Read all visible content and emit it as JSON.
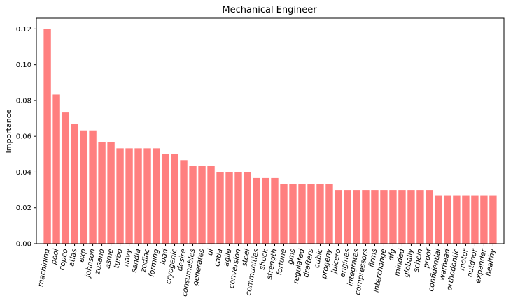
{
  "chart_data": {
    "type": "bar",
    "title": "Mechanical Engineer",
    "xlabel": "",
    "ylabel": "Importance",
    "ylim": [
      0,
      0.126
    ],
    "yticks": [
      0.0,
      0.02,
      0.04,
      0.06,
      0.08,
      0.1,
      0.12
    ],
    "bar_color": "#ff7f7f",
    "grid": false,
    "categories": [
      "machining",
      "pool",
      "copco",
      "atlas",
      "exp",
      "johnson",
      "zosano",
      "asme",
      "turbo",
      "navy",
      "sandia",
      "zodiac",
      "forming",
      "load",
      "cryogenic",
      "desire",
      "consumables",
      "generates",
      "ul",
      "catia",
      "agile",
      "conversion",
      "steel",
      "communities",
      "shock",
      "strength",
      "fortune",
      "gms",
      "regulated",
      "drafters",
      "cubic",
      "progeny",
      "juicero",
      "engines",
      "integrates",
      "compressors",
      "firms",
      "interchange",
      "dfg",
      "minded",
      "globally",
      "schein",
      "proof",
      "confidential",
      "warhead",
      "orthodontic",
      "motor",
      "outdoor",
      "expander",
      "healthy"
    ],
    "values": [
      0.12,
      0.0833,
      0.0733,
      0.0667,
      0.0633,
      0.0633,
      0.0567,
      0.0567,
      0.0533,
      0.0533,
      0.0533,
      0.0533,
      0.0533,
      0.05,
      0.05,
      0.0467,
      0.0433,
      0.0433,
      0.0433,
      0.04,
      0.04,
      0.04,
      0.04,
      0.0367,
      0.0367,
      0.0367,
      0.0333,
      0.0333,
      0.0333,
      0.0333,
      0.0333,
      0.0333,
      0.03,
      0.03,
      0.03,
      0.03,
      0.03,
      0.03,
      0.03,
      0.03,
      0.03,
      0.03,
      0.03,
      0.0267,
      0.0267,
      0.0267,
      0.0267,
      0.0267,
      0.0267,
      0.0267
    ]
  }
}
